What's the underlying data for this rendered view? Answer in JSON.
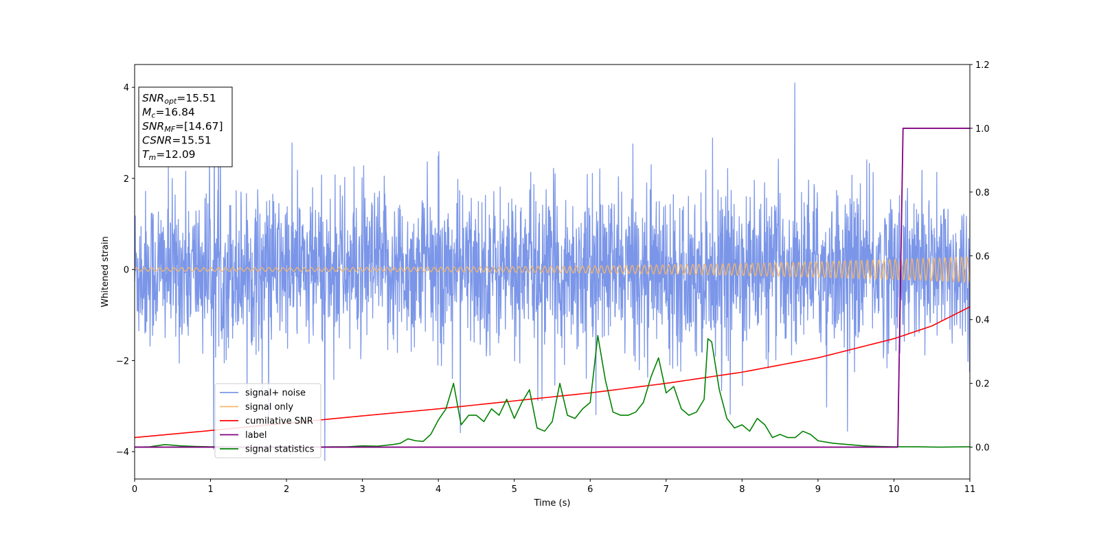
{
  "chart_data": {
    "type": "line",
    "xlabel": "Time (s)",
    "ylabel": "Whitened strain",
    "xlim": [
      0,
      11
    ],
    "ylim_left": [
      -4.6,
      4.5
    ],
    "ylim_right": [
      -0.1,
      1.2
    ],
    "xticks": [
      "0",
      "1",
      "2",
      "3",
      "4",
      "5",
      "6",
      "7",
      "8",
      "9",
      "10",
      "11"
    ],
    "yticks_left": [
      "−4",
      "−2",
      "0",
      "2",
      "4"
    ],
    "yticks_right": [
      "0.0",
      "0.2",
      "0.4",
      "0.6",
      "0.8",
      "1.0",
      "1.2"
    ],
    "legend_position": "lower-left",
    "series": [
      {
        "name": "signal+ noise",
        "color": "#7b96e8",
        "axis": "left",
        "description_values": {
          "mean": 0,
          "std": 0.85,
          "min": -4.2,
          "max": 4.1
        }
      },
      {
        "name": "signal only",
        "color": "#f5b66a",
        "axis": "left",
        "amplitude_start": 0.04,
        "amplitude_end": 0.28
      },
      {
        "name": "cumilative SNR",
        "color": "#ff0000",
        "axis": "right",
        "x": [
          0,
          1,
          2,
          3,
          4,
          5,
          6,
          7,
          8,
          9,
          10,
          10.5,
          11
        ],
        "y": [
          0.03,
          0.052,
          0.075,
          0.098,
          0.12,
          0.145,
          0.17,
          0.2,
          0.235,
          0.28,
          0.34,
          0.38,
          0.44
        ]
      },
      {
        "name": "label",
        "color": "#800080",
        "axis": "right",
        "x": [
          0,
          10.05,
          10.12,
          11
        ],
        "y": [
          0,
          0,
          1,
          1
        ]
      },
      {
        "name": "signal statistics",
        "color": "#008000",
        "axis": "right",
        "x": [
          0,
          0.2,
          0.4,
          0.6,
          0.8,
          1.0,
          1.2,
          1.4,
          1.6,
          1.8,
          2.0,
          2.2,
          2.4,
          2.6,
          2.8,
          3.0,
          3.2,
          3.4,
          3.5,
          3.6,
          3.7,
          3.8,
          3.9,
          4.0,
          4.1,
          4.2,
          4.3,
          4.4,
          4.5,
          4.6,
          4.7,
          4.8,
          4.9,
          5.0,
          5.1,
          5.2,
          5.3,
          5.4,
          5.5,
          5.6,
          5.7,
          5.8,
          5.9,
          6.0,
          6.1,
          6.2,
          6.3,
          6.4,
          6.5,
          6.6,
          6.7,
          6.8,
          6.9,
          7.0,
          7.1,
          7.2,
          7.3,
          7.4,
          7.5,
          7.55,
          7.6,
          7.7,
          7.8,
          7.9,
          8.0,
          8.1,
          8.2,
          8.3,
          8.4,
          8.5,
          8.6,
          8.7,
          8.8,
          8.9,
          9.0,
          9.2,
          9.4,
          9.6,
          9.8,
          10.0,
          10.3,
          10.6,
          11
        ],
        "y": [
          0.0,
          0.001,
          0.008,
          0.004,
          0.002,
          0.001,
          0.001,
          0.0,
          0.001,
          0.0,
          0.001,
          0.001,
          0.0,
          0.001,
          0.001,
          0.004,
          0.003,
          0.008,
          0.012,
          0.026,
          0.02,
          0.018,
          0.04,
          0.085,
          0.12,
          0.2,
          0.07,
          0.1,
          0.1,
          0.08,
          0.12,
          0.1,
          0.15,
          0.09,
          0.14,
          0.18,
          0.06,
          0.05,
          0.08,
          0.2,
          0.1,
          0.09,
          0.12,
          0.14,
          0.35,
          0.21,
          0.11,
          0.1,
          0.1,
          0.11,
          0.14,
          0.22,
          0.28,
          0.17,
          0.19,
          0.12,
          0.1,
          0.11,
          0.15,
          0.34,
          0.33,
          0.18,
          0.09,
          0.06,
          0.07,
          0.05,
          0.09,
          0.07,
          0.03,
          0.04,
          0.03,
          0.03,
          0.05,
          0.04,
          0.02,
          0.012,
          0.008,
          0.004,
          0.002,
          0.001,
          0.001,
          0.0,
          0.001
        ]
      }
    ],
    "annotation": {
      "lines": [
        {
          "base": "SNR",
          "sub": "opt",
          "value": "=15.51"
        },
        {
          "base": "M",
          "sub": "c",
          "value": "=16.84"
        },
        {
          "base": "SNR",
          "sub": "MF",
          "value": "=[14.67]"
        },
        {
          "base": "CSNR",
          "sub": "",
          "value": "=15.51"
        },
        {
          "base": "T",
          "sub": "m",
          "value": "=12.09"
        }
      ]
    }
  }
}
